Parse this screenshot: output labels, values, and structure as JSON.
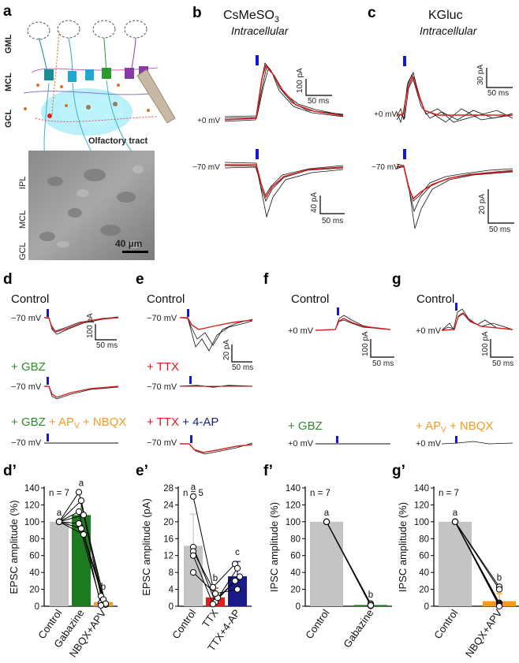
{
  "colors": {
    "gbz": "#2e8b2e",
    "apv": "#f39a1f",
    "ttx": "#e01818",
    "ap4": "#1c1c8c",
    "bar_control": "#c4c4c4",
    "bar_gbz": "#1e7a1e",
    "bar_apv": "#f39a1f",
    "bar_ttx": "#e31c1c",
    "bar_ap4": "#1a1a8a",
    "stim": "#1616d6",
    "trace_mean": "#d62020",
    "trace_raw": "#111111"
  },
  "panel_letters": {
    "a": "a",
    "b": "b",
    "c": "c",
    "d": "d",
    "e": "e",
    "f": "f",
    "g": "g",
    "dp": "d’",
    "ep": "e’",
    "fp": "f’",
    "gp": "g’"
  },
  "panel_a": {
    "layers": [
      "GML",
      "MCL",
      "GCL"
    ],
    "tract": "Olfactory tract",
    "micro_layers": [
      "IPL",
      "MCL",
      "GCL"
    ],
    "scalebar": "40 µm"
  },
  "panel_b": {
    "title_prefix": "CsMeSO",
    "title_sub": "3",
    "subtitle": "Intracellular",
    "v_top": "+0 mV",
    "v_bottom": "−70 mV",
    "sb_top_y": "100 pA",
    "sb_top_x": "50 ms",
    "sb_bot_y": "40 pA",
    "sb_bot_x": "50 ms"
  },
  "panel_c": {
    "title": "KGluc",
    "subtitle": "Intracellular",
    "v_top": "+0 mV",
    "v_bottom": "−70 mV",
    "sb_top_y": "30 pA",
    "sb_top_x": "50 ms",
    "sb_bot_y": "20 pA",
    "sb_bot_x": "50 ms"
  },
  "panel_d": {
    "control": "Control",
    "plus": "+ ",
    "gbz": "GBZ",
    "apv_a": " + AP",
    "apv_sub": "V",
    "nbqx": " + NBQX",
    "v": "−70 mV",
    "sb_y": "100 pA",
    "sb_x": "50 ms"
  },
  "panel_e": {
    "control": "Control",
    "ttx": "+ TTX",
    "ttx2": "+ TTX",
    "ap4": " + 4-AP",
    "v": "−70 mV",
    "sb_y": "20 pA",
    "sb_x": "50 ms"
  },
  "panel_f": {
    "control": "Control",
    "gbz": "+ GBZ",
    "v": "+0 mV",
    "sb_y": "100 pA",
    "sb_x": "50 ms"
  },
  "panel_g": {
    "control": "Control",
    "apv_a": "+ AP",
    "apv_sub": "V",
    "nbqx": " + NBQX",
    "v": "+0 mV",
    "sb_y": "100 pA",
    "sb_x": "50 ms"
  },
  "chart_data": [
    {
      "panel": "d’",
      "type": "bar",
      "ylabel": "EPSC amplitude (%)",
      "ylim": [
        0,
        140
      ],
      "yticks": [
        "0",
        "20",
        "40",
        "60",
        "80",
        "100",
        "120",
        "140"
      ],
      "categories": [
        "Control",
        "Gabazine",
        "NBQX+APV"
      ],
      "values": [
        100,
        108,
        5
      ],
      "errors": [
        0,
        17,
        3
      ],
      "letters": [
        "a",
        "a",
        "b"
      ],
      "n_label": "n = 7",
      "points": [
        [
          100,
          100,
          100,
          100,
          100,
          100,
          100
        ],
        [
          135,
          125,
          108,
          98,
          92,
          85,
          112
        ],
        [
          12,
          6,
          2,
          4,
          8,
          3,
          1
        ]
      ]
    },
    {
      "panel": "e’",
      "type": "bar",
      "ylabel": "EPSC amplitude (pA)",
      "ylim": [
        0,
        28
      ],
      "yticks": [
        "0",
        "4",
        "8",
        "12",
        "16",
        "20",
        "24",
        "28"
      ],
      "categories": [
        "Control",
        "TTX",
        "TTX+4-AP"
      ],
      "values": [
        14.3,
        2.1,
        7.1
      ],
      "errors": [
        7.5,
        2.2,
        3.5
      ],
      "letters": [
        "a",
        "b",
        "c"
      ],
      "n_label": "n = 5",
      "points": [
        [
          26,
          14,
          13,
          12,
          8
        ],
        [
          4.5,
          1,
          2,
          0.5,
          3
        ],
        [
          10,
          9,
          7,
          6,
          4
        ]
      ]
    },
    {
      "panel": "f’",
      "type": "bar",
      "ylabel": "IPSC amplitude (%)",
      "ylim": [
        0,
        140
      ],
      "yticks": [
        "0",
        "20",
        "40",
        "60",
        "80",
        "100",
        "120",
        "140"
      ],
      "categories": [
        "Control",
        "Gabazine"
      ],
      "values": [
        100,
        1.5
      ],
      "errors": [
        0,
        1.5
      ],
      "letters": [
        "a",
        "b"
      ],
      "n_label": "n = 7",
      "points": [
        [
          100,
          100,
          100,
          100,
          100,
          100,
          100
        ],
        [
          2,
          1,
          3,
          0.5,
          1.5,
          2.5,
          1
        ]
      ]
    },
    {
      "panel": "g’",
      "type": "bar",
      "ylabel": "IPSC amplitude (%)",
      "ylim": [
        0,
        140
      ],
      "yticks": [
        "0",
        "20",
        "40",
        "60",
        "80",
        "100",
        "120",
        "140"
      ],
      "categories": [
        "Control",
        "NBQX+APV"
      ],
      "values": [
        100,
        6
      ],
      "errors": [
        0,
        9
      ],
      "letters": [
        "a",
        "b"
      ],
      "n_label": "n = 7",
      "points": [
        [
          100,
          100,
          100,
          100,
          100,
          100,
          100
        ],
        [
          23,
          20,
          4,
          3,
          2,
          1,
          0
        ]
      ]
    }
  ]
}
